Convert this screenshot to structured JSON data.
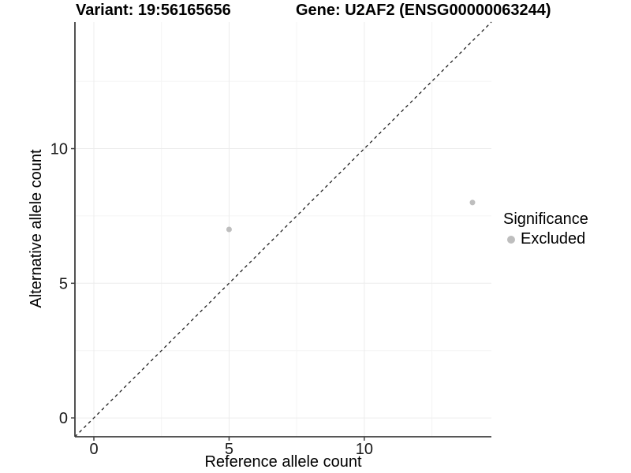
{
  "chart_data": {
    "type": "scatter",
    "title_left": "Variant: 19:56165656",
    "title_right": "Gene: U2AF2 (ENSG00000063244)",
    "xlabel": "Reference allele count",
    "ylabel": "Alternative allele count",
    "xlim": [
      -0.7,
      14.7
    ],
    "ylim": [
      -0.7,
      14.7
    ],
    "x_major_ticks": [
      0,
      5,
      10
    ],
    "x_minor_ticks": [
      2.5,
      7.5,
      12.5
    ],
    "y_major_ticks": [
      0,
      5,
      10
    ],
    "y_minor_ticks": [
      2.5,
      7.5,
      12.5
    ],
    "grid": true,
    "series": [
      {
        "name": "Excluded",
        "color": "#bebebe",
        "points": [
          {
            "x": 5,
            "y": 7
          },
          {
            "x": 14,
            "y": 8
          }
        ]
      }
    ],
    "reference_line": {
      "kind": "identity",
      "slope": 1,
      "intercept": 0,
      "style": "dashed",
      "color": "#1f1f1f"
    },
    "legend": {
      "title": "Significance",
      "position": "right",
      "items": [
        {
          "label": "Excluded",
          "color": "#bebebe"
        }
      ]
    }
  },
  "colors": {
    "background": "#ffffff",
    "grid_major": "#ececec",
    "grid_minor": "#f4f4f4",
    "axis_line": "#3f3f3f",
    "tick_mark": "#3f3f3f",
    "tick_label": "#1a1a1a",
    "title_text": "#000000",
    "point_fill": "#bebebe"
  }
}
